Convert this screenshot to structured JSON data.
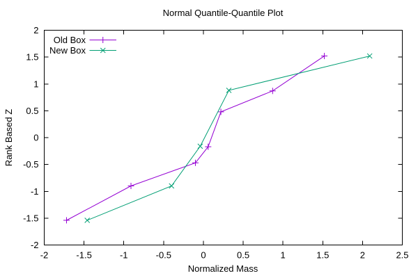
{
  "chart": {
    "title": "Normal Quantile-Quantile Plot",
    "xlabel": "Normalized Mass",
    "ylabel": "Rank Based Z"
  },
  "legend": {
    "entries": [
      {
        "label": "Old Box",
        "marker": "plus-icon",
        "color": "#9400D3"
      },
      {
        "label": "New Box",
        "marker": "cross-icon",
        "color": "#009E73"
      }
    ]
  },
  "chart_data": {
    "type": "line",
    "title": "Normal Quantile-Quantile Plot",
    "xlabel": "Normalized Mass",
    "ylabel": "Rank Based Z",
    "xlim": [
      -2,
      2.5
    ],
    "ylim": [
      -2,
      2
    ],
    "xticks": [
      -2,
      -1.5,
      -1,
      -0.5,
      0,
      0.5,
      1,
      1.5,
      2,
      2.5
    ],
    "xtick_labels": [
      "-2",
      "-1.5",
      "-1",
      "-0.5",
      "0",
      "0.5",
      "1",
      "1.5",
      "2",
      "2.5"
    ],
    "yticks": [
      -2,
      -1.5,
      -1,
      -0.5,
      0,
      0.5,
      1,
      1.5,
      2
    ],
    "ytick_labels": [
      "-2",
      "-1.5",
      "-1",
      "-0.5",
      "0",
      "0.5",
      "1",
      "1.5",
      "2"
    ],
    "grid": false,
    "legend_position": "top-left-inside",
    "series": [
      {
        "name": "Old Box",
        "color": "#9400D3",
        "marker": "plus",
        "points": [
          [
            -1.72,
            -1.54
          ],
          [
            -0.91,
            -0.9
          ],
          [
            -0.1,
            -0.47
          ],
          [
            0.06,
            -0.17
          ],
          [
            0.22,
            0.48
          ],
          [
            0.87,
            0.87
          ],
          [
            1.52,
            1.52
          ]
        ]
      },
      {
        "name": "New Box",
        "color": "#009E73",
        "marker": "cross",
        "points": [
          [
            -1.46,
            -1.54
          ],
          [
            -0.4,
            -0.9
          ],
          [
            -0.04,
            -0.16
          ],
          [
            0.32,
            0.88
          ],
          [
            2.09,
            1.52
          ]
        ]
      }
    ]
  }
}
